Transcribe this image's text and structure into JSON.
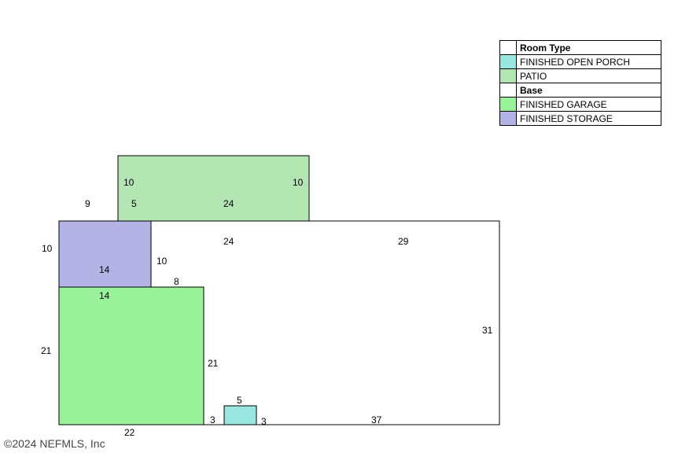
{
  "legend": {
    "header": "Room Type",
    "items": [
      {
        "label": "FINISHED OPEN PORCH",
        "color": "#99e6e0"
      },
      {
        "label": "PATIO",
        "color": "#b3e6b3"
      },
      {
        "label": "Base",
        "color": "#ffffff",
        "bold": true
      },
      {
        "label": "FINISHED GARAGE",
        "color": "#99f299"
      },
      {
        "label": "FINISHED STORAGE",
        "color": "#b3b3e6"
      }
    ]
  },
  "rooms": {
    "patio_color": "#b3e6b3",
    "storage_color": "#b3b3e6",
    "garage_color": "#99f299",
    "porch_color": "#99e6e0",
    "base_color": "#ffffff"
  },
  "dimensions": {
    "patio_left": "10",
    "patio_right": "10",
    "patio_offset_a": "9",
    "patio_offset_b": "5",
    "patio_width": "24",
    "base_top_a": "24",
    "base_top_b": "29",
    "storage_left": "10",
    "storage_right": "10",
    "storage_top": "14",
    "storage_bottom": "14",
    "garage_step": "8",
    "garage_left": "21",
    "garage_right": "21",
    "base_right": "31",
    "garage_bottom": "22",
    "porch_left": "3",
    "porch_top": "5",
    "porch_right": "3",
    "base_bottom": "37"
  },
  "copyright": "©2024 NEFMLS, Inc"
}
